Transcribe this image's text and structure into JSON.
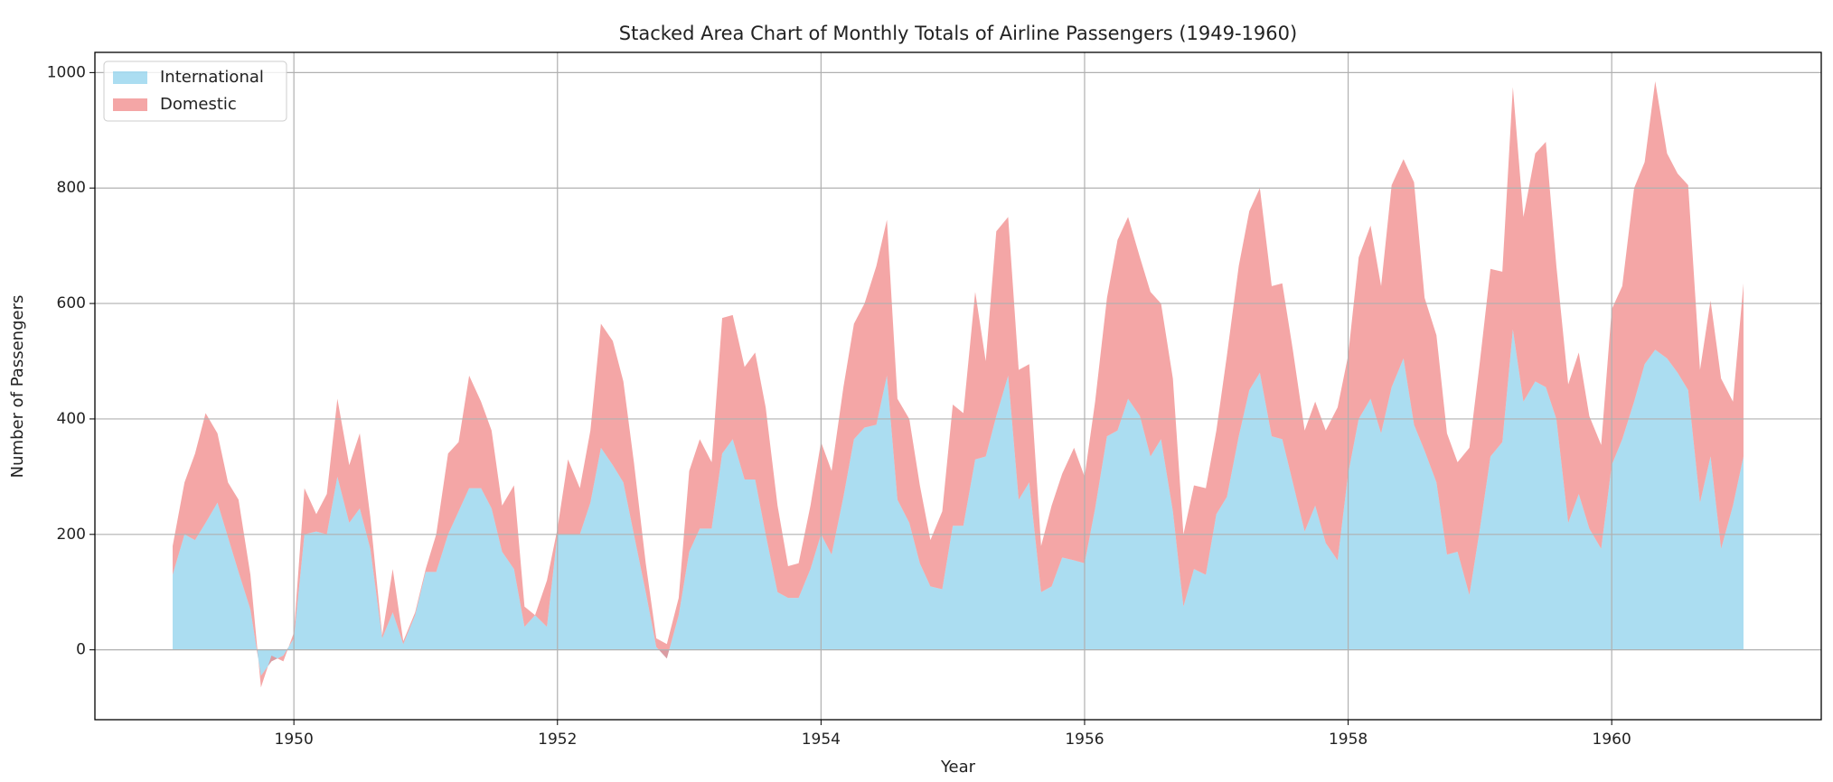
{
  "chart_data": {
    "type": "stacked-area",
    "title": "Stacked Area Chart of Monthly Totals of Airline Passengers (1949-1960)",
    "x_label": "Year",
    "y_label": "Number of Passengers",
    "x": [
      1949.08,
      1949.17,
      1949.25,
      1949.33,
      1949.42,
      1949.5,
      1949.58,
      1949.67,
      1949.75,
      1949.83,
      1949.92,
      1950.0,
      1950.08,
      1950.17,
      1950.25,
      1950.33,
      1950.42,
      1950.5,
      1950.58,
      1950.67,
      1950.75,
      1950.83,
      1950.92,
      1951.0,
      1951.08,
      1951.17,
      1951.25,
      1951.33,
      1951.42,
      1951.5,
      1951.58,
      1951.67,
      1951.75,
      1951.83,
      1951.92,
      1952.0,
      1952.08,
      1952.17,
      1952.25,
      1952.33,
      1952.42,
      1952.5,
      1952.58,
      1952.67,
      1952.75,
      1952.83,
      1952.92,
      1953.0,
      1953.08,
      1953.17,
      1953.25,
      1953.33,
      1953.42,
      1953.5,
      1953.58,
      1953.67,
      1953.75,
      1953.83,
      1953.92,
      1954.0,
      1954.08,
      1954.17,
      1954.25,
      1954.33,
      1954.42,
      1954.5,
      1954.58,
      1954.67,
      1954.75,
      1954.83,
      1954.92,
      1955.0,
      1955.08,
      1955.17,
      1955.25,
      1955.33,
      1955.42,
      1955.5,
      1955.58,
      1955.67,
      1955.75,
      1955.83,
      1955.92,
      1956.0,
      1956.08,
      1956.17,
      1956.25,
      1956.33,
      1956.42,
      1956.5,
      1956.58,
      1956.67,
      1956.75,
      1956.83,
      1956.92,
      1957.0,
      1957.08,
      1957.17,
      1957.25,
      1957.33,
      1957.42,
      1957.5,
      1957.58,
      1957.67,
      1957.75,
      1957.83,
      1957.92,
      1958.0,
      1958.08,
      1958.17,
      1958.25,
      1958.33,
      1958.42,
      1958.5,
      1958.58,
      1958.67,
      1958.75,
      1958.83,
      1958.92,
      1959.0,
      1959.08,
      1959.17,
      1959.25,
      1959.33,
      1959.42,
      1959.5,
      1959.58,
      1959.67,
      1959.75,
      1959.83,
      1959.92,
      1960.0,
      1960.08,
      1960.17,
      1960.25,
      1960.33,
      1960.42,
      1960.5,
      1960.58,
      1960.67,
      1960.75,
      1960.83,
      1960.92,
      1961.0
    ],
    "series": [
      {
        "name": "International",
        "color": "skyblue",
        "values": [
          130,
          200,
          190,
          220,
          255,
          195,
          135,
          70,
          -45,
          -20,
          -10,
          20,
          200,
          205,
          200,
          300,
          220,
          245,
          175,
          20,
          65,
          10,
          60,
          135,
          135,
          200,
          240,
          280,
          280,
          245,
          170,
          140,
          40,
          60,
          40,
          200,
          200,
          200,
          255,
          350,
          320,
          290,
          200,
          100,
          5,
          -15,
          60,
          170,
          210,
          210,
          340,
          365,
          295,
          295,
          200,
          100,
          90,
          90,
          140,
          200,
          165,
          265,
          365,
          385,
          390,
          475,
          260,
          220,
          150,
          110,
          105,
          215,
          215,
          330,
          335,
          405,
          475,
          260,
          290,
          100,
          110,
          160,
          155,
          150,
          245,
          370,
          380,
          435,
          405,
          335,
          365,
          240,
          75,
          140,
          130,
          235,
          265,
          370,
          450,
          480,
          370,
          365,
          290,
          205,
          250,
          185,
          155,
          305,
          400,
          435,
          375,
          455,
          505,
          390,
          345,
          290,
          165,
          170,
          95,
          210,
          335,
          360,
          555,
          430,
          465,
          455,
          400,
          220,
          270,
          210,
          175,
          320,
          365,
          430,
          495,
          520,
          505,
          480,
          450,
          255,
          335,
          175,
          250,
          335
        ]
      },
      {
        "name": "Domestic",
        "color": "lightcoral",
        "values": [
          50,
          90,
          150,
          190,
          120,
          95,
          125,
          60,
          -20,
          10,
          -10,
          10,
          80,
          30,
          70,
          135,
          100,
          130,
          55,
          5,
          75,
          5,
          5,
          5,
          65,
          140,
          120,
          195,
          150,
          135,
          80,
          145,
          35,
          0,
          80,
          10,
          130,
          80,
          125,
          215,
          215,
          175,
          125,
          50,
          15,
          25,
          30,
          140,
          155,
          115,
          235,
          215,
          195,
          220,
          220,
          150,
          55,
          60,
          110,
          160,
          145,
          190,
          200,
          215,
          275,
          270,
          175,
          180,
          135,
          80,
          135,
          210,
          195,
          290,
          165,
          320,
          275,
          225,
          205,
          80,
          140,
          145,
          195,
          150,
          185,
          240,
          330,
          315,
          275,
          285,
          235,
          230,
          125,
          145,
          150,
          145,
          245,
          295,
          310,
          320,
          260,
          270,
          230,
          175,
          180,
          195,
          265,
          205,
          280,
          300,
          255,
          350,
          345,
          420,
          265,
          255,
          210,
          155,
          255,
          290,
          325,
          295,
          420,
          320,
          395,
          425,
          265,
          240,
          245,
          195,
          180,
          270,
          265,
          370,
          350,
          465,
          355,
          345,
          355,
          230,
          270,
          295,
          180,
          300
        ]
      }
    ],
    "alpha": 0.7,
    "xlim": [
      1948.49,
      1961.59
    ],
    "xticks": [
      1950,
      1952,
      1954,
      1956,
      1958,
      1960
    ],
    "ylim": [
      -121,
      1035
    ],
    "yticks": [
      0,
      200,
      400,
      600,
      800,
      1000
    ],
    "grid": true,
    "legend": "upper left"
  }
}
